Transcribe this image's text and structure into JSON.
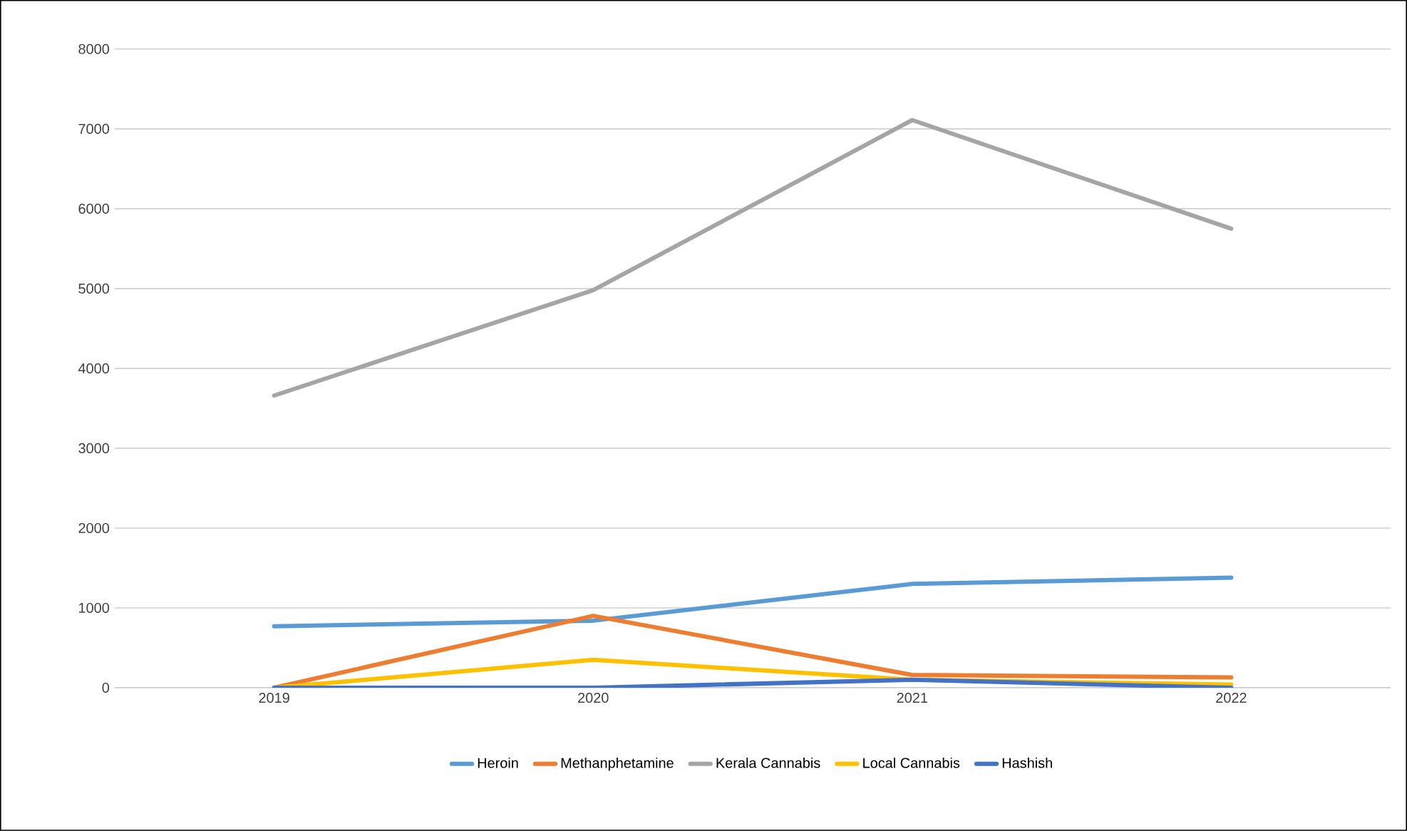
{
  "chart_data": {
    "type": "line",
    "categories": [
      "2019",
      "2020",
      "2021",
      "2022"
    ],
    "series": [
      {
        "name": "Heroin",
        "color": "#5b9bd5",
        "values": [
          770,
          840,
          1300,
          1380
        ]
      },
      {
        "name": "Methanphetamine",
        "color": "#ed7d31",
        "values": [
          0,
          900,
          160,
          130
        ]
      },
      {
        "name": "Kerala Cannabis",
        "color": "#a5a5a5",
        "values": [
          3660,
          4980,
          7110,
          5750
        ]
      },
      {
        "name": "Local Cannabis",
        "color": "#ffc000",
        "values": [
          0,
          350,
          100,
          40
        ]
      },
      {
        "name": "Hashish",
        "color": "#4472c4",
        "values": [
          0,
          0,
          100,
          0
        ]
      }
    ],
    "ylim": [
      0,
      8000
    ],
    "yticks": [
      0,
      1000,
      2000,
      3000,
      4000,
      5000,
      6000,
      7000,
      8000
    ],
    "grid": "y",
    "legend": "bottom",
    "marker": "none",
    "line_style": "solid"
  }
}
